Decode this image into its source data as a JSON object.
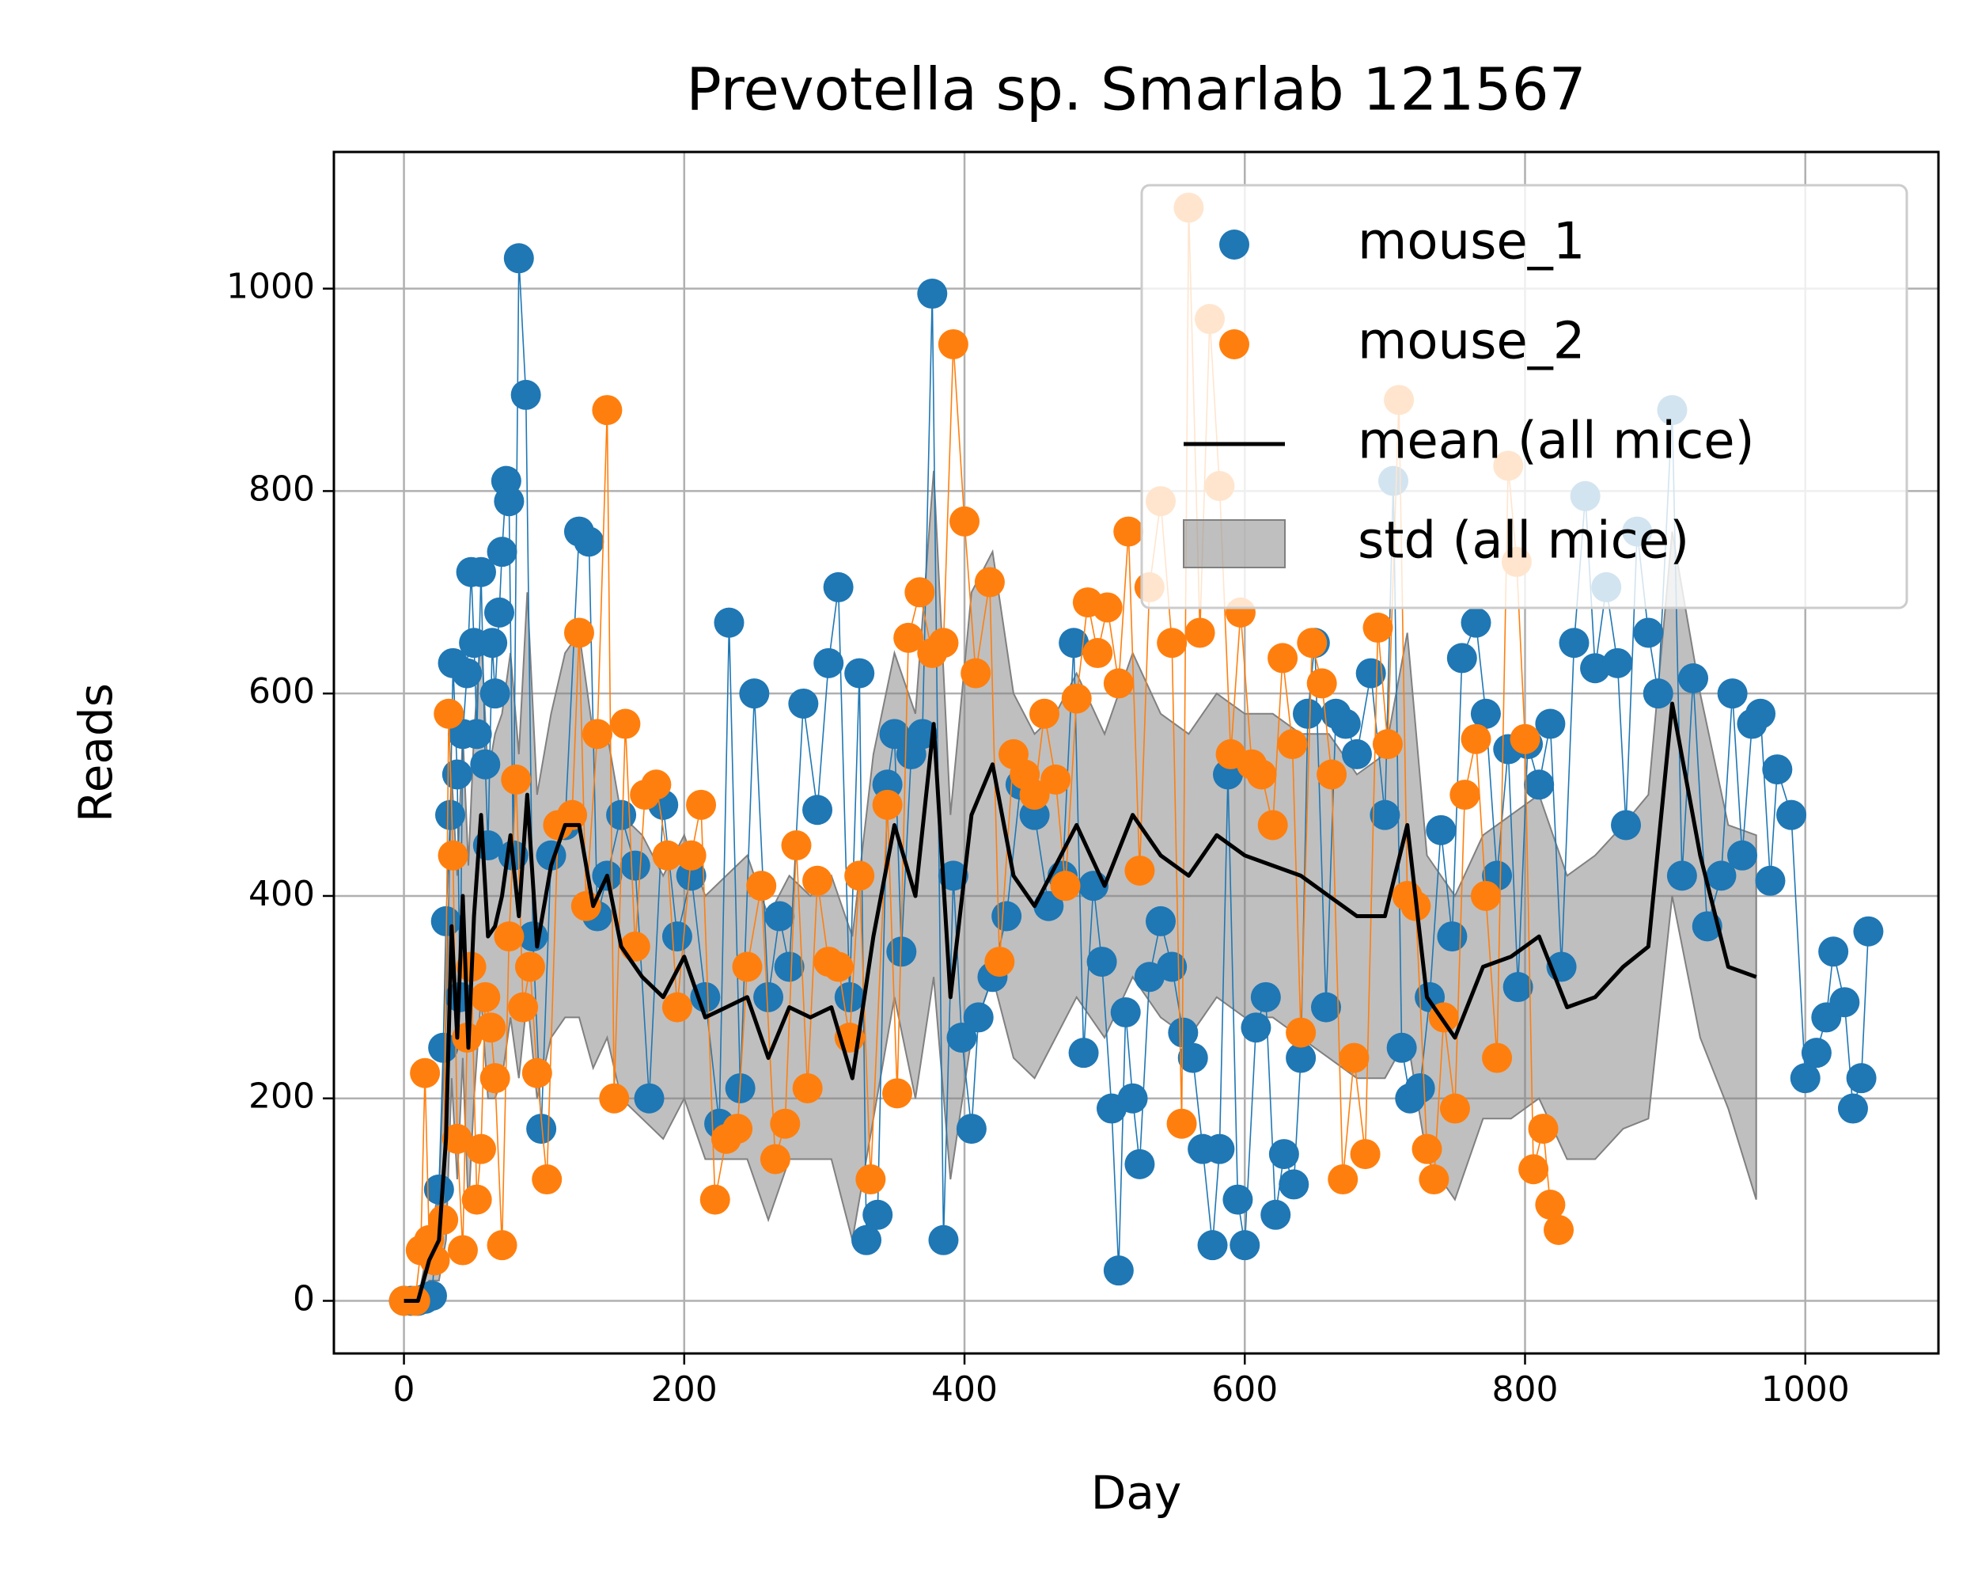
{
  "chart_data": {
    "type": "line",
    "title": "Prevotella sp. Smarlab 121567",
    "xlabel": "Day",
    "ylabel": "Reads",
    "xlim": [
      -50,
      1095
    ],
    "ylim": [
      -52,
      1135
    ],
    "xticks": [
      0,
      200,
      400,
      600,
      800,
      1000
    ],
    "yticks": [
      0,
      200,
      400,
      600,
      800,
      1000
    ],
    "grid": true,
    "legend": "upper right",
    "series": [
      {
        "name": "mouse_1",
        "color": "#1f77b4",
        "kind": "scatter-line",
        "x": [
          0,
          5,
          10,
          15,
          20,
          25,
          28,
          30,
          33,
          35,
          38,
          40,
          42,
          45,
          48,
          50,
          52,
          55,
          58,
          60,
          63,
          65,
          68,
          70,
          73,
          75,
          78,
          82,
          87,
          92,
          98,
          105,
          115,
          125,
          132,
          138,
          145,
          155,
          165,
          175,
          185,
          195,
          205,
          215,
          225,
          232,
          240,
          250,
          260,
          268,
          275,
          285,
          295,
          303,
          310,
          318,
          325,
          330,
          338,
          345,
          350,
          355,
          362,
          370,
          377,
          385,
          392,
          398,
          405,
          410,
          420,
          430,
          440,
          450,
          460,
          470,
          478,
          485,
          492,
          498,
          505,
          510,
          515,
          520,
          525,
          532,
          540,
          548,
          556,
          563,
          570,
          577,
          582,
          588,
          595,
          600,
          608,
          615,
          622,
          628,
          635,
          640,
          645,
          650,
          658,
          665,
          672,
          680,
          690,
          700,
          706,
          712,
          718,
          725,
          732,
          740,
          748,
          755,
          765,
          772,
          780,
          788,
          795,
          802,
          810,
          818,
          826,
          835,
          843,
          850,
          858,
          866,
          872,
          880,
          888,
          895,
          905,
          912,
          920,
          930,
          940,
          948,
          955,
          962,
          968,
          975,
          980,
          990,
          1000,
          1008,
          1015,
          1020,
          1028,
          1034,
          1040,
          1045
        ],
        "values": [
          0,
          0,
          0,
          2,
          5,
          110,
          250,
          375,
          480,
          630,
          520,
          300,
          560,
          620,
          720,
          650,
          560,
          720,
          530,
          450,
          650,
          600,
          680,
          740,
          810,
          790,
          440,
          1030,
          895,
          360,
          170,
          440,
          470,
          760,
          750,
          380,
          420,
          480,
          430,
          200,
          490,
          360,
          420,
          300,
          175,
          670,
          210,
          600,
          300,
          380,
          330,
          590,
          485,
          630,
          705,
          300,
          620,
          60,
          85,
          510,
          560,
          345,
          540,
          560,
          995,
          60,
          420,
          260,
          170,
          280,
          320,
          380,
          510,
          480,
          390,
          420,
          650,
          245,
          410,
          335,
          190,
          30,
          285,
          200,
          135,
          320,
          375,
          330,
          265,
          240,
          150,
          55,
          150,
          520,
          100,
          55,
          270,
          300,
          85,
          145,
          115,
          240,
          580,
          650,
          290,
          580,
          570,
          540,
          620,
          480,
          810,
          250,
          200,
          210,
          300,
          465,
          360,
          635,
          670,
          580,
          420,
          545,
          310,
          550,
          510,
          570,
          330,
          650,
          795,
          625,
          705,
          630,
          470,
          760,
          660,
          600,
          880,
          420,
          615,
          370,
          420,
          600,
          440,
          570,
          580,
          415,
          525,
          480,
          220,
          245,
          280,
          345,
          295,
          190,
          220,
          365
        ]
      },
      {
        "name": "mouse_2",
        "color": "#ff7f0e",
        "kind": "scatter-line",
        "x": [
          0,
          8,
          12,
          15,
          18,
          22,
          28,
          32,
          35,
          38,
          42,
          45,
          48,
          52,
          55,
          58,
          62,
          65,
          70,
          75,
          80,
          85,
          90,
          95,
          102,
          110,
          120,
          125,
          130,
          138,
          145,
          150,
          158,
          165,
          172,
          180,
          188,
          195,
          205,
          212,
          222,
          230,
          238,
          245,
          255,
          265,
          272,
          280,
          288,
          295,
          303,
          310,
          318,
          325,
          333,
          345,
          352,
          360,
          368,
          377,
          385,
          392,
          400,
          408,
          418,
          425,
          435,
          443,
          450,
          457,
          465,
          472,
          480,
          488,
          495,
          502,
          510,
          517,
          525,
          532,
          540,
          548,
          555,
          560,
          568,
          575,
          582,
          590,
          597,
          605,
          612,
          620,
          627,
          634,
          640,
          648,
          655,
          662,
          670,
          678,
          686,
          695,
          702,
          710,
          716,
          722,
          730,
          735,
          742,
          750,
          757,
          765,
          772,
          780,
          788,
          794,
          800,
          806,
          813,
          818,
          824
        ],
        "values": [
          0,
          0,
          50,
          225,
          60,
          40,
          80,
          580,
          440,
          160,
          50,
          260,
          330,
          100,
          150,
          300,
          270,
          220,
          55,
          360,
          515,
          290,
          330,
          225,
          120,
          470,
          480,
          660,
          390,
          560,
          880,
          200,
          570,
          350,
          500,
          510,
          440,
          290,
          440,
          490,
          100,
          160,
          170,
          330,
          410,
          140,
          175,
          450,
          210,
          415,
          335,
          330,
          260,
          420,
          120,
          490,
          205,
          655,
          700,
          640,
          650,
          945,
          770,
          620,
          710,
          335,
          540,
          520,
          500,
          580,
          515,
          410,
          595,
          690,
          640,
          685,
          610,
          760,
          425,
          705,
          790,
          650,
          175,
          1080,
          660,
          970,
          805,
          540,
          680,
          530,
          520,
          470,
          635,
          550,
          265,
          650,
          610,
          520,
          120,
          240,
          145,
          665,
          550,
          890,
          400,
          390,
          150,
          120,
          280,
          190,
          500,
          555,
          400,
          240,
          825,
          730,
          555,
          130,
          170,
          95,
          70
        ]
      },
      {
        "name": "mean (all mice)",
        "color": "#000000",
        "kind": "line",
        "x": [
          0,
          10,
          18,
          25,
          30,
          34,
          38,
          42,
          46,
          50,
          55,
          60,
          65,
          70,
          76,
          82,
          88,
          95,
          105,
          115,
          125,
          135,
          145,
          155,
          170,
          185,
          200,
          215,
          230,
          245,
          260,
          275,
          290,
          305,
          320,
          335,
          350,
          365,
          378,
          390,
          405,
          420,
          435,
          450,
          465,
          480,
          500,
          520,
          540,
          560,
          580,
          600,
          620,
          640,
          660,
          680,
          700,
          716,
          730,
          750,
          770,
          790,
          810,
          830,
          850,
          870,
          888,
          905,
          925,
          945,
          965
        ],
        "values": [
          0,
          0,
          40,
          60,
          160,
          370,
          260,
          400,
          250,
          380,
          480,
          360,
          370,
          400,
          460,
          380,
          500,
          350,
          430,
          470,
          470,
          390,
          420,
          350,
          320,
          300,
          340,
          280,
          290,
          300,
          240,
          290,
          280,
          290,
          220,
          360,
          470,
          400,
          570,
          300,
          480,
          530,
          420,
          390,
          430,
          470,
          410,
          480,
          440,
          420,
          460,
          440,
          430,
          420,
          400,
          380,
          380,
          470,
          300,
          260,
          330,
          340,
          360,
          290,
          300,
          330,
          350,
          590,
          440,
          330,
          320
        ]
      },
      {
        "name": "std (all mice)",
        "color": "#808080",
        "kind": "band",
        "x": [
          0,
          10,
          18,
          25,
          30,
          34,
          38,
          42,
          46,
          50,
          55,
          60,
          65,
          70,
          76,
          82,
          88,
          95,
          105,
          115,
          125,
          135,
          145,
          155,
          170,
          185,
          200,
          215,
          230,
          245,
          260,
          275,
          290,
          305,
          320,
          335,
          350,
          365,
          378,
          390,
          405,
          420,
          435,
          450,
          465,
          480,
          500,
          520,
          540,
          560,
          580,
          600,
          620,
          640,
          660,
          680,
          700,
          716,
          730,
          750,
          770,
          790,
          810,
          830,
          850,
          870,
          888,
          905,
          925,
          945,
          965
        ],
        "upper": [
          0,
          0,
          60,
          110,
          280,
          520,
          420,
          560,
          430,
          560,
          660,
          520,
          560,
          580,
          640,
          540,
          700,
          500,
          580,
          640,
          660,
          560,
          560,
          480,
          460,
          420,
          460,
          400,
          420,
          440,
          380,
          420,
          400,
          420,
          360,
          540,
          640,
          580,
          820,
          480,
          700,
          740,
          600,
          560,
          580,
          620,
          560,
          640,
          580,
          560,
          600,
          580,
          580,
          560,
          560,
          520,
          540,
          660,
          440,
          400,
          460,
          480,
          500,
          420,
          440,
          470,
          500,
          760,
          600,
          470,
          460
        ],
        "lower": [
          0,
          0,
          20,
          20,
          60,
          220,
          120,
          240,
          90,
          200,
          300,
          200,
          200,
          220,
          280,
          220,
          300,
          200,
          260,
          280,
          280,
          230,
          260,
          200,
          180,
          160,
          200,
          140,
          140,
          140,
          80,
          140,
          140,
          140,
          60,
          180,
          300,
          200,
          320,
          120,
          260,
          320,
          240,
          220,
          260,
          300,
          260,
          320,
          280,
          260,
          300,
          280,
          280,
          260,
          240,
          220,
          220,
          260,
          140,
          100,
          180,
          180,
          200,
          140,
          140,
          170,
          180,
          400,
          260,
          190,
          100
        ]
      }
    ]
  }
}
